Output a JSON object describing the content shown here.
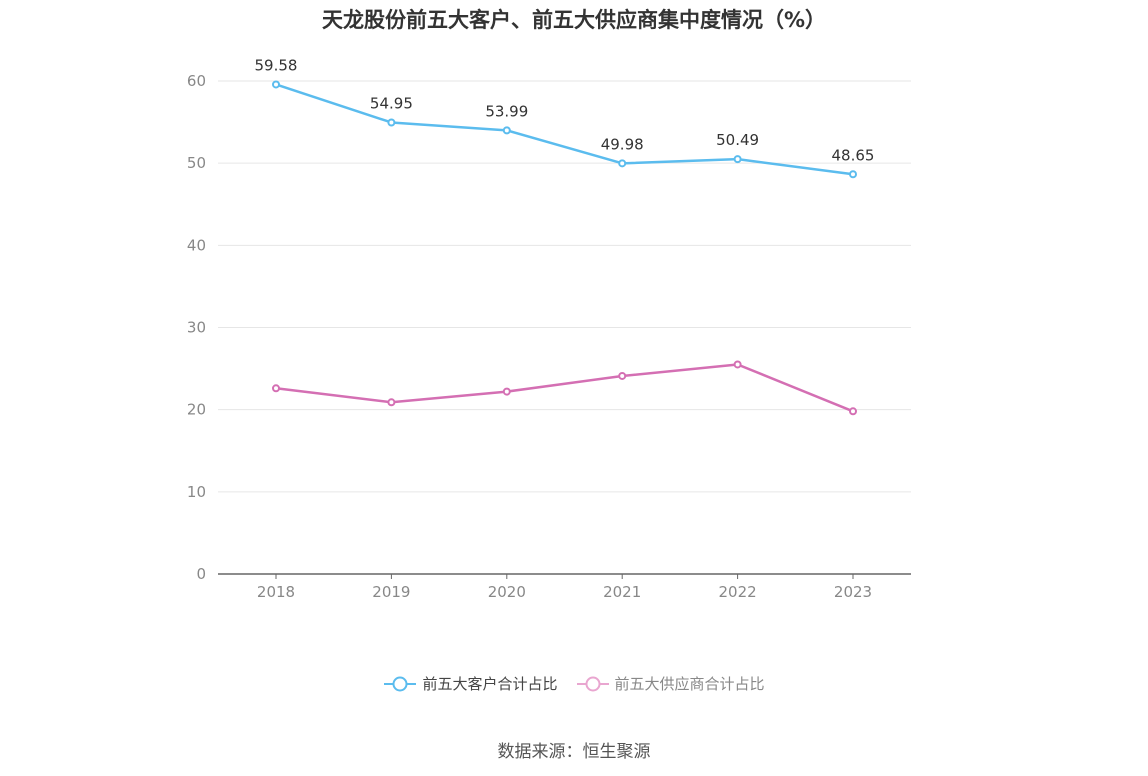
{
  "chart_data": {
    "type": "line",
    "title": "天龙股份前五大客户、前五大供应商集中度情况（%）",
    "categories": [
      "2018",
      "2019",
      "2020",
      "2021",
      "2022",
      "2023"
    ],
    "series": [
      {
        "name": "前五大客户合计占比",
        "values": [
          59.58,
          54.95,
          53.99,
          49.98,
          50.49,
          48.65
        ],
        "color": "#5bbcee",
        "show_labels": true
      },
      {
        "name": "前五大供应商合计占比",
        "values": [
          22.6,
          20.9,
          22.2,
          24.1,
          25.5,
          19.8
        ],
        "color": "#d46fb3",
        "show_labels": false
      }
    ],
    "ylim": [
      0,
      60
    ],
    "yticks": [
      0,
      10,
      20,
      30,
      40,
      50,
      60
    ],
    "grid": true,
    "legend_position": "bottom"
  },
  "source": "数据来源：恒生聚源"
}
